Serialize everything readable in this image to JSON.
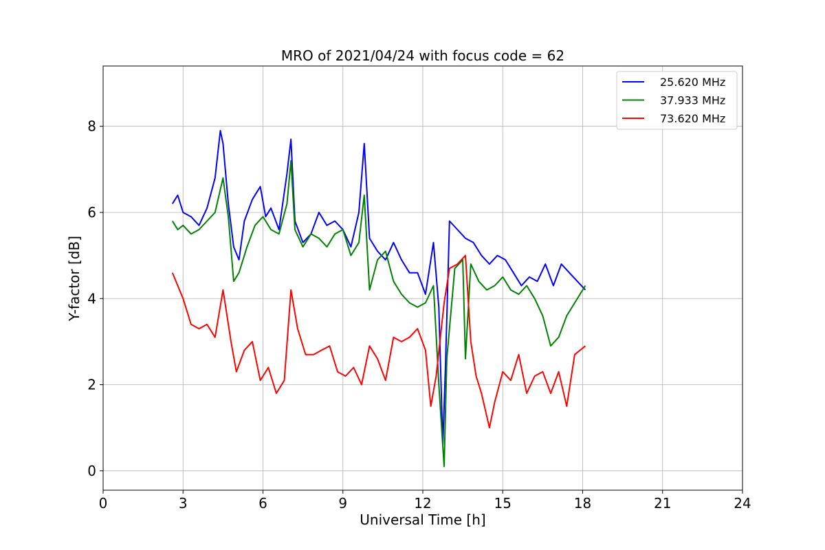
{
  "chart_data": {
    "type": "line",
    "title": "MRO of 2021/04/24 with focus code = 62",
    "xlabel": "Universal Time [h]",
    "ylabel": "Y-factor [dB]",
    "xlim": [
      0,
      24
    ],
    "ylim": [
      -0.45,
      9.4
    ],
    "xticks": [
      0,
      3,
      6,
      9,
      12,
      15,
      18,
      21,
      24
    ],
    "yticks": [
      0,
      2,
      4,
      6,
      8
    ],
    "grid": true,
    "legend_position": "top-right",
    "series": [
      {
        "name": "25.620 MHz",
        "color": "#0000ff",
        "x": [
          2.6,
          2.8,
          3.0,
          3.3,
          3.6,
          3.9,
          4.2,
          4.4,
          4.5,
          4.7,
          4.9,
          5.1,
          5.3,
          5.6,
          5.9,
          6.1,
          6.3,
          6.6,
          6.9,
          7.05,
          7.2,
          7.5,
          7.8,
          8.1,
          8.4,
          8.7,
          9.0,
          9.3,
          9.6,
          9.8,
          10.0,
          10.3,
          10.6,
          10.9,
          11.2,
          11.5,
          11.8,
          12.1,
          12.4,
          12.6,
          12.75,
          12.85,
          13.0,
          13.3,
          13.6,
          13.9,
          14.2,
          14.5,
          14.8,
          15.1,
          15.4,
          15.7,
          16.0,
          16.3,
          16.6,
          16.9,
          17.2,
          17.5,
          17.8,
          18.1
        ],
        "values": [
          6.2,
          6.4,
          6.0,
          5.9,
          5.7,
          6.1,
          6.8,
          7.9,
          7.6,
          6.2,
          5.2,
          4.9,
          5.8,
          6.3,
          6.6,
          5.9,
          6.1,
          5.6,
          6.9,
          7.7,
          5.8,
          5.3,
          5.5,
          6.0,
          5.7,
          5.8,
          5.6,
          5.2,
          6.0,
          7.6,
          5.4,
          5.1,
          4.9,
          5.3,
          4.9,
          4.6,
          4.6,
          4.1,
          5.3,
          3.8,
          0.6,
          2.4,
          5.8,
          5.6,
          5.4,
          5.3,
          5.0,
          4.8,
          5.0,
          4.9,
          4.6,
          4.3,
          4.5,
          4.4,
          4.8,
          4.3,
          4.8,
          4.6,
          4.4,
          4.2
        ]
      },
      {
        "name": "37.933 MHz",
        "color": "#008000",
        "x": [
          2.6,
          2.8,
          3.0,
          3.3,
          3.6,
          3.9,
          4.2,
          4.5,
          4.7,
          4.9,
          5.1,
          5.4,
          5.7,
          6.0,
          6.3,
          6.6,
          6.9,
          7.05,
          7.2,
          7.5,
          7.8,
          8.1,
          8.4,
          8.7,
          9.0,
          9.3,
          9.6,
          9.8,
          10.0,
          10.3,
          10.6,
          10.9,
          11.2,
          11.5,
          11.8,
          12.1,
          12.4,
          12.6,
          12.8,
          12.9,
          13.2,
          13.5,
          13.6,
          13.8,
          14.1,
          14.4,
          14.7,
          15.0,
          15.3,
          15.6,
          15.9,
          16.2,
          16.5,
          16.8,
          17.1,
          17.4,
          17.7,
          18.1
        ],
        "values": [
          5.8,
          5.6,
          5.7,
          5.5,
          5.6,
          5.8,
          6.0,
          6.8,
          5.9,
          4.4,
          4.6,
          5.2,
          5.7,
          5.9,
          5.6,
          5.5,
          6.2,
          7.2,
          5.6,
          5.2,
          5.5,
          5.4,
          5.2,
          5.5,
          5.6,
          5.0,
          5.3,
          6.4,
          4.2,
          4.9,
          5.1,
          4.4,
          4.1,
          3.9,
          3.8,
          3.9,
          4.3,
          2.0,
          0.1,
          2.6,
          4.7,
          4.9,
          2.6,
          4.8,
          4.4,
          4.2,
          4.3,
          4.5,
          4.2,
          4.1,
          4.3,
          4.0,
          3.6,
          2.9,
          3.1,
          3.6,
          3.9,
          4.3
        ]
      },
      {
        "name": "73.620 MHz",
        "color": "#ff0000",
        "x": [
          2.6,
          2.8,
          3.0,
          3.3,
          3.6,
          3.9,
          4.2,
          4.5,
          4.8,
          5.0,
          5.3,
          5.6,
          5.9,
          6.2,
          6.5,
          6.8,
          7.05,
          7.3,
          7.6,
          7.9,
          8.2,
          8.5,
          8.8,
          9.1,
          9.4,
          9.7,
          10.0,
          10.3,
          10.6,
          10.9,
          11.2,
          11.5,
          11.8,
          12.1,
          12.3,
          12.5,
          12.8,
          13.0,
          13.3,
          13.6,
          13.8,
          14.0,
          14.2,
          14.5,
          14.7,
          15.0,
          15.3,
          15.6,
          15.9,
          16.2,
          16.5,
          16.8,
          17.1,
          17.4,
          17.7,
          18.1
        ],
        "values": [
          4.6,
          4.3,
          4.0,
          3.4,
          3.3,
          3.4,
          3.1,
          4.2,
          3.0,
          2.3,
          2.8,
          3.0,
          2.1,
          2.4,
          1.8,
          2.1,
          4.2,
          3.3,
          2.7,
          2.7,
          2.8,
          2.9,
          2.3,
          2.2,
          2.4,
          2.0,
          2.9,
          2.6,
          2.1,
          3.1,
          3.0,
          3.1,
          3.3,
          2.8,
          1.5,
          2.2,
          3.9,
          4.7,
          4.8,
          5.0,
          3.0,
          2.2,
          1.8,
          1.0,
          1.6,
          2.3,
          2.1,
          2.7,
          1.8,
          2.2,
          2.3,
          1.8,
          2.3,
          1.5,
          2.7,
          2.9
        ]
      }
    ]
  }
}
